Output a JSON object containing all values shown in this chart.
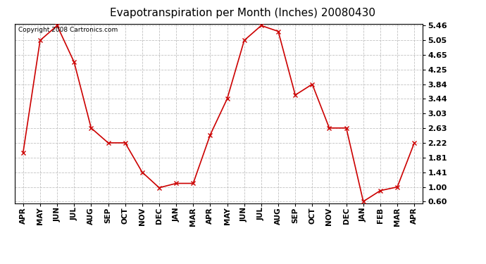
{
  "title": "Evapotranspiration per Month (Inches) 20080430",
  "copyright": "Copyright 2008 Cartronics.com",
  "x_labels": [
    "APR",
    "MAY",
    "JUN",
    "JUL",
    "AUG",
    "SEP",
    "OCT",
    "NOV",
    "DEC",
    "JAN",
    "MAR",
    "APR",
    "MAY",
    "JUN",
    "JUL",
    "AUG",
    "SEP",
    "OCT",
    "NOV",
    "DEC",
    "JAN",
    "FEB",
    "MAR",
    "APR"
  ],
  "y_values": [
    1.95,
    5.05,
    5.46,
    4.45,
    2.63,
    2.22,
    2.22,
    1.41,
    0.98,
    1.1,
    1.1,
    2.44,
    3.44,
    5.05,
    5.46,
    5.3,
    3.54,
    3.84,
    2.63,
    2.63,
    0.6,
    0.9,
    1.0,
    2.22
  ],
  "line_color": "#cc0000",
  "marker_color": "#cc0000",
  "background_color": "#ffffff",
  "plot_bg_color": "#ffffff",
  "grid_color": "#bbbbbb",
  "y_ticks": [
    0.6,
    1.0,
    1.41,
    1.81,
    2.22,
    2.63,
    3.03,
    3.44,
    3.84,
    4.25,
    4.65,
    5.05,
    5.46
  ],
  "title_fontsize": 11,
  "copyright_fontsize": 6.5,
  "tick_fontsize": 7.5,
  "ytick_fontsize": 8
}
